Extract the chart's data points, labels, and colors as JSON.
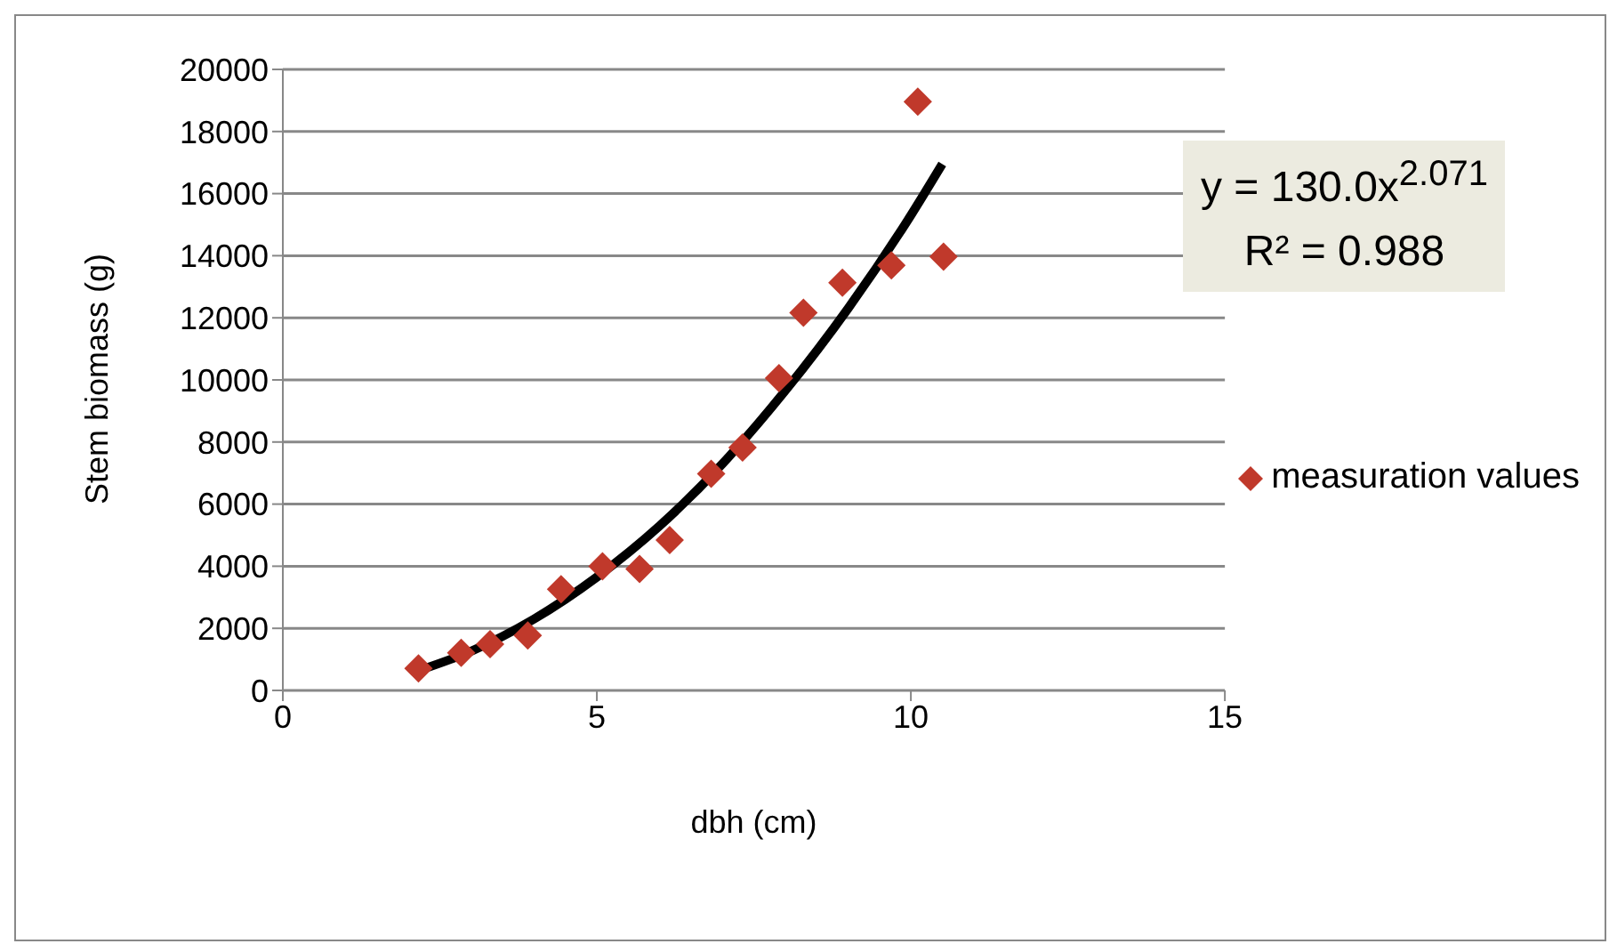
{
  "chart_data": {
    "type": "scatter",
    "xlabel": "dbh (cm)",
    "ylabel": "Stem biomass (g)",
    "xlim": [
      0,
      15
    ],
    "xticks": [
      0,
      5,
      10,
      15
    ],
    "ylim": [
      0,
      20000
    ],
    "yticks": [
      0,
      2000,
      4000,
      6000,
      8000,
      10000,
      12000,
      14000,
      16000,
      18000,
      20000
    ],
    "grid": "y",
    "legend": "right",
    "marker": "diamond",
    "annotations": [
      "y = 130.0x$^{2.071}$",
      "R² = 0.988"
    ],
    "series": [
      {
        "name": "measuration values",
        "color": "#c0392b",
        "x": [
          2.16,
          2.84,
          3.3,
          3.9,
          4.43,
          5.09,
          5.68,
          6.16,
          6.82,
          7.32,
          7.9,
          8.29,
          8.91,
          9.69,
          10.11,
          10.52
        ],
        "values": [
          710,
          1210,
          1490,
          1770,
          3260,
          4000,
          3910,
          4840,
          6980,
          7820,
          10060,
          12160,
          13130,
          13690,
          18960,
          13970
        ]
      },
      {
        "type": "line",
        "color": "#000000",
        "marker": "none",
        "line_style": "solid",
        "x": [
          2.2,
          3,
          4,
          5,
          6,
          7,
          8,
          9,
          10,
          10.5
        ],
        "values": [
          665,
          1265,
          2300,
          3650,
          5300,
          7300,
          9650,
          12300,
          15300,
          16950
        ]
      }
    ]
  }
}
